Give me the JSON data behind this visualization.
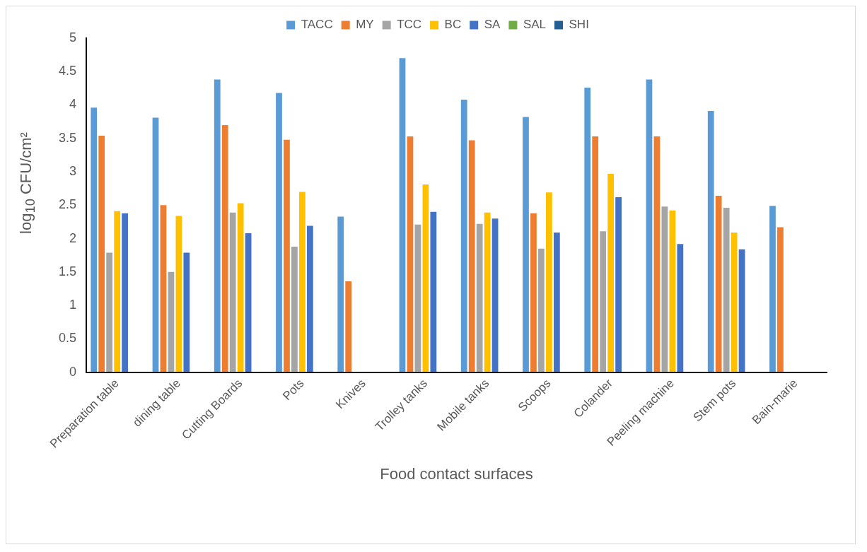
{
  "chart_data": {
    "type": "bar",
    "xlabel": "Food contact surfaces",
    "ylabel": "log$_{10}$ CFU/cm²",
    "categories": [
      "Preparation table",
      "dining table",
      "Cutting Boards",
      "Pots",
      "Knives",
      "Trolley tanks",
      "Mobile tanks",
      "Scoops",
      "Colander",
      "Peeling machine",
      "Stem pots",
      "Bain-marie"
    ],
    "series": [
      {
        "name": "TACC",
        "color": "#5b9bd5",
        "values": [
          3.96,
          3.81,
          4.38,
          4.18,
          2.33,
          4.7,
          4.08,
          3.82,
          4.26,
          4.38,
          3.91,
          2.49
        ]
      },
      {
        "name": "MY",
        "color": "#ed7d31",
        "values": [
          3.54,
          2.5,
          3.7,
          3.48,
          1.36,
          3.53,
          3.47,
          2.38,
          3.53,
          3.53,
          2.64,
          2.17
        ]
      },
      {
        "name": "TCC",
        "color": "#a5a5a5",
        "values": [
          1.79,
          1.5,
          2.39,
          1.88,
          null,
          2.21,
          2.22,
          1.85,
          2.11,
          2.48,
          2.46,
          null
        ]
      },
      {
        "name": "BC",
        "color": "#ffc000",
        "values": [
          2.41,
          2.34,
          2.53,
          2.7,
          null,
          2.81,
          2.39,
          2.69,
          2.97,
          2.42,
          2.09,
          null
        ]
      },
      {
        "name": "SA",
        "color": "#4472c4",
        "values": [
          2.38,
          1.79,
          2.08,
          2.19,
          null,
          2.4,
          2.3,
          2.09,
          2.62,
          1.92,
          1.84,
          null
        ]
      },
      {
        "name": "SAL",
        "color": "#70ad47",
        "values": [
          null,
          null,
          null,
          null,
          null,
          null,
          null,
          null,
          null,
          null,
          null,
          null
        ]
      },
      {
        "name": "SHI",
        "color": "#255e91",
        "values": [
          null,
          null,
          null,
          null,
          null,
          null,
          null,
          null,
          null,
          null,
          null,
          null
        ]
      }
    ],
    "ylim": [
      0,
      5
    ],
    "yticks": [
      0,
      0.5,
      1,
      1.5,
      2,
      2.5,
      3,
      3.5,
      4,
      4.5,
      5
    ],
    "grid": false,
    "legend": "top"
  }
}
